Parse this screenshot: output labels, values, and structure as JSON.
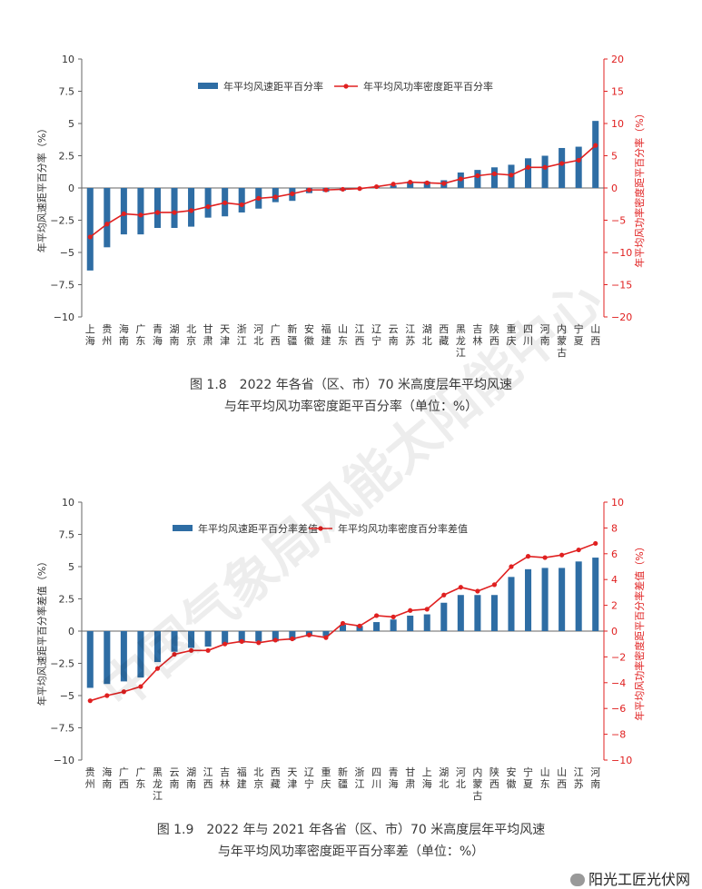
{
  "chart_data": [
    {
      "type": "bar+line",
      "caption_line1": "图 1.8　2022 年各省（区、市）70 米高度层年平均风速",
      "caption_line2": "与年平均风功率密度距平百分率（单位：%）",
      "ylabel_left": "年平均风速距平百分率（%）",
      "ylabel_right": "年平均风功率密度距平百分率（%）",
      "ylim_left": [
        -10,
        10
      ],
      "ylim_right": [
        -20,
        20
      ],
      "yticks_left": [
        "10",
        "7.5",
        "5",
        "2.5",
        "0",
        "−2.5",
        "−5",
        "−7.5",
        "−10"
      ],
      "yticks_right": [
        "20",
        "15",
        "10",
        "5",
        "0",
        "−5",
        "−10",
        "−15",
        "−20"
      ],
      "categories": [
        "上海",
        "贵州",
        "海南",
        "广东",
        "青海",
        "湖南",
        "北京",
        "甘肃",
        "天津",
        "浙江",
        "河北",
        "广西",
        "新疆",
        "安徽",
        "福建",
        "山东",
        "江西",
        "辽宁",
        "云南",
        "江苏",
        "湖北",
        "西藏",
        "黑龙江",
        "吉林",
        "陕西",
        "重庆",
        "四川",
        "河南",
        "内蒙古",
        "宁夏",
        "山西"
      ],
      "series": [
        {
          "name": "年平均风速距平百分率",
          "kind": "bar",
          "axis": "left",
          "color": "#2e6da4",
          "values": [
            -6.4,
            -4.6,
            -3.6,
            -3.6,
            -3.1,
            -3.1,
            -3.0,
            -2.3,
            -2.2,
            -1.9,
            -1.6,
            -1.1,
            -1.0,
            -0.4,
            -0.3,
            -0.2,
            -0.1,
            0.1,
            0.2,
            0.5,
            0.5,
            0.6,
            1.2,
            1.4,
            1.6,
            1.8,
            2.3,
            2.5,
            3.1,
            3.2,
            5.2
          ]
        },
        {
          "name": "年平均风功率密度距平百分率",
          "kind": "line",
          "axis": "right",
          "color": "#e02020",
          "values": [
            -7.6,
            -5.6,
            -4.0,
            -4.2,
            -3.8,
            -3.8,
            -3.5,
            -2.9,
            -2.3,
            -2.6,
            -1.6,
            -1.4,
            -0.9,
            -0.3,
            -0.3,
            -0.2,
            -0.1,
            0.2,
            0.6,
            0.9,
            0.8,
            0.7,
            1.4,
            1.9,
            2.2,
            2.0,
            3.2,
            3.2,
            3.8,
            4.3,
            6.6
          ]
        }
      ]
    },
    {
      "type": "bar+line",
      "caption_line1": "图 1.9　2022 年与 2021 年各省（区、市）70 米高度层年平均风速",
      "caption_line2": "与年平均风功率密度距平百分率差（单位：%）",
      "ylabel_left": "年平均风速距平百分率差值（%）",
      "ylabel_right": "年平均风功率密度距平百分率差值（%）",
      "ylim_left": [
        -10,
        10
      ],
      "ylim_right": [
        -10,
        10
      ],
      "yticks_left": [
        "10",
        "7.5",
        "5",
        "2.5",
        "0",
        "−2.5",
        "−5",
        "−7.5",
        "−10"
      ],
      "yticks_right": [
        "10",
        "8",
        "6",
        "4",
        "2",
        "0",
        "−2",
        "−4",
        "−6",
        "−8",
        "−10"
      ],
      "categories": [
        "贵州",
        "海南",
        "广西",
        "广东",
        "黑龙江",
        "云南",
        "湖南",
        "江西",
        "吉林",
        "福建",
        "北京",
        "西藏",
        "天津",
        "辽宁",
        "重庆",
        "新疆",
        "浙江",
        "四川",
        "青海",
        "甘肃",
        "上海",
        "湖北",
        "河北",
        "内蒙古",
        "陕西",
        "安徽",
        "宁夏",
        "山东",
        "山西",
        "江苏",
        "河南"
      ],
      "series": [
        {
          "name": "年平均风速距平百分率差值",
          "kind": "bar",
          "axis": "left",
          "color": "#2e6da4",
          "values": [
            -4.4,
            -4.1,
            -3.9,
            -3.6,
            -2.4,
            -1.6,
            -1.3,
            -1.2,
            -1.0,
            -0.9,
            -0.8,
            -0.8,
            -0.7,
            -0.4,
            -0.4,
            0.5,
            0.4,
            0.7,
            0.9,
            1.2,
            1.3,
            2.2,
            2.8,
            2.8,
            2.8,
            4.2,
            4.8,
            4.9,
            4.9,
            5.4,
            5.7
          ]
        },
        {
          "name": "年平均风功率密度百分率差值",
          "kind": "line",
          "axis": "right",
          "color": "#e02020",
          "values": [
            -5.4,
            -5.0,
            -4.7,
            -4.3,
            -2.9,
            -1.8,
            -1.5,
            -1.5,
            -1.0,
            -0.8,
            -0.9,
            -0.7,
            -0.6,
            -0.3,
            -0.5,
            0.6,
            0.4,
            1.2,
            1.1,
            1.6,
            1.7,
            2.8,
            3.4,
            3.1,
            3.6,
            5.0,
            5.8,
            5.7,
            5.9,
            6.3,
            6.8
          ]
        }
      ]
    }
  ],
  "watermark_diagonal": "中国气象局风能太阳能中心",
  "watermark_corner": "阳光工匠光伏网"
}
